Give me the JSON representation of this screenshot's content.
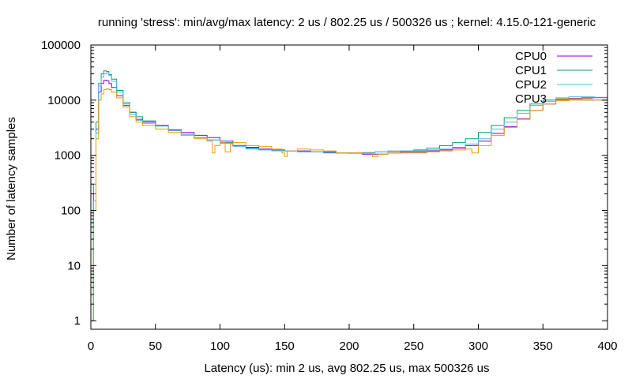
{
  "chart_data": {
    "type": "line",
    "title": "running 'stress': min/avg/max latency: 2 us / 802.25 us / 500326 us ; kernel: 4.15.0-121-generic",
    "xlabel": "Latency (us): min 2 us, avg 802.25 us, max 500326 us",
    "ylabel": "Number of latency samples",
    "xlim": [
      0,
      400
    ],
    "ylim": [
      0.7,
      100000
    ],
    "yscale": "log",
    "grid": false,
    "legend_position": "top-right",
    "x_ticks": [
      {
        "value": 0,
        "label": "0"
      },
      {
        "value": 50,
        "label": "50"
      },
      {
        "value": 100,
        "label": "100"
      },
      {
        "value": 150,
        "label": "150"
      },
      {
        "value": 200,
        "label": "200"
      },
      {
        "value": 250,
        "label": "250"
      },
      {
        "value": 300,
        "label": "300"
      },
      {
        "value": 350,
        "label": "350"
      },
      {
        "value": 400,
        "label": "400"
      }
    ],
    "y_ticks": [
      {
        "value": 1,
        "label": "1"
      },
      {
        "value": 10,
        "label": "10"
      },
      {
        "value": 100,
        "label": "100"
      },
      {
        "value": 1000,
        "label": "1000"
      },
      {
        "value": 10000,
        "label": "10000"
      },
      {
        "value": 100000,
        "label": "100000"
      }
    ],
    "series": [
      {
        "name": "CPU0",
        "color": "#9400d3",
        "x": [
          1,
          2,
          4,
          6,
          8,
          10,
          12,
          14,
          16,
          20,
          25,
          30,
          35,
          40,
          50,
          60,
          70,
          80,
          90,
          100,
          110,
          120,
          130,
          140,
          150,
          160,
          170,
          180,
          190,
          200,
          210,
          220,
          230,
          240,
          250,
          260,
          270,
          280,
          290,
          300,
          310,
          320,
          330,
          340,
          350,
          360,
          370,
          380,
          390,
          399,
          400
        ],
        "y": [
          1,
          200,
          3000,
          14000,
          20000,
          23000,
          22500,
          20000,
          17000,
          12000,
          8000,
          6000,
          4500,
          4000,
          3500,
          2900,
          2600,
          2300,
          2100,
          1800,
          1500,
          1400,
          1300,
          1250,
          1200,
          1200,
          1150,
          1150,
          1100,
          1100,
          1050,
          1050,
          1100,
          1150,
          1150,
          1200,
          1250,
          1350,
          1500,
          1800,
          2500,
          3300,
          4600,
          6500,
          8500,
          10000,
          10800,
          11000,
          11200,
          11200,
          1
        ]
      },
      {
        "name": "CPU1",
        "color": "#009e73",
        "x": [
          1,
          2,
          4,
          6,
          8,
          10,
          12,
          14,
          16,
          20,
          25,
          30,
          35,
          40,
          50,
          60,
          70,
          80,
          90,
          100,
          110,
          120,
          130,
          140,
          150,
          160,
          170,
          180,
          190,
          200,
          210,
          220,
          230,
          240,
          250,
          260,
          270,
          280,
          290,
          300,
          310,
          320,
          330,
          340,
          350,
          360,
          370,
          380,
          390,
          399,
          400
        ],
        "y": [
          1,
          300,
          4000,
          20000,
          30000,
          34000,
          33000,
          29000,
          24000,
          15000,
          9000,
          6000,
          5000,
          4200,
          3400,
          2800,
          2400,
          2100,
          1900,
          1700,
          1500,
          1350,
          1280,
          1250,
          1200,
          1150,
          1150,
          1120,
          1100,
          1100,
          1120,
          1150,
          1180,
          1200,
          1250,
          1350,
          1500,
          1700,
          2000,
          2600,
          3500,
          4800,
          6500,
          8500,
          10000,
          10500,
          10200,
          10000,
          10000,
          10000,
          1
        ]
      },
      {
        "name": "CPU2",
        "color": "#56b4e9",
        "x": [
          1,
          2,
          4,
          6,
          8,
          10,
          12,
          14,
          16,
          20,
          25,
          30,
          35,
          40,
          50,
          60,
          70,
          80,
          90,
          100,
          110,
          120,
          130,
          140,
          150,
          160,
          170,
          180,
          190,
          200,
          210,
          220,
          230,
          240,
          250,
          260,
          270,
          280,
          290,
          300,
          310,
          320,
          330,
          340,
          350,
          360,
          370,
          380,
          390,
          399,
          400
        ],
        "y": [
          1,
          150,
          2500,
          18000,
          26000,
          30000,
          31000,
          28000,
          22000,
          14000,
          8500,
          5500,
          4300,
          3800,
          3400,
          2800,
          2400,
          2100,
          1900,
          1650,
          1450,
          1300,
          1250,
          1200,
          1200,
          1150,
          1150,
          1100,
          1100,
          1080,
          1100,
          1150,
          1200,
          1200,
          1200,
          1250,
          1300,
          1400,
          1600,
          2000,
          3000,
          4000,
          5800,
          8000,
          9500,
          11000,
          11500,
          11500,
          11000,
          11000,
          1
        ]
      },
      {
        "name": "CPU3",
        "color": "#e69f00",
        "x": [
          1,
          2,
          4,
          6,
          8,
          10,
          12,
          14,
          16,
          20,
          25,
          30,
          35,
          40,
          50,
          60,
          70,
          80,
          90,
          94,
          96,
          100,
          104,
          108,
          110,
          120,
          130,
          140,
          148,
          150,
          152,
          160,
          170,
          180,
          190,
          200,
          210,
          218,
          222,
          230,
          240,
          250,
          260,
          270,
          280,
          290,
          295,
          300,
          310,
          320,
          330,
          340,
          350,
          360,
          370,
          380,
          390,
          399,
          400
        ],
        "y": [
          1,
          100,
          2000,
          10000,
          13000,
          15500,
          16000,
          15500,
          14000,
          11000,
          7500,
          5000,
          4000,
          3500,
          3000,
          2600,
          2300,
          2000,
          1800,
          1100,
          1500,
          1700,
          1150,
          1600,
          1700,
          1500,
          1450,
          1300,
          1100,
          950,
          1200,
          1300,
          1250,
          1200,
          1100,
          1100,
          1080,
          950,
          1050,
          1100,
          1100,
          1100,
          1150,
          1200,
          1250,
          1300,
          1100,
          1500,
          2300,
          3200,
          4500,
          6500,
          8500,
          9800,
          10000,
          10000,
          10000,
          10000,
          1
        ]
      }
    ]
  }
}
